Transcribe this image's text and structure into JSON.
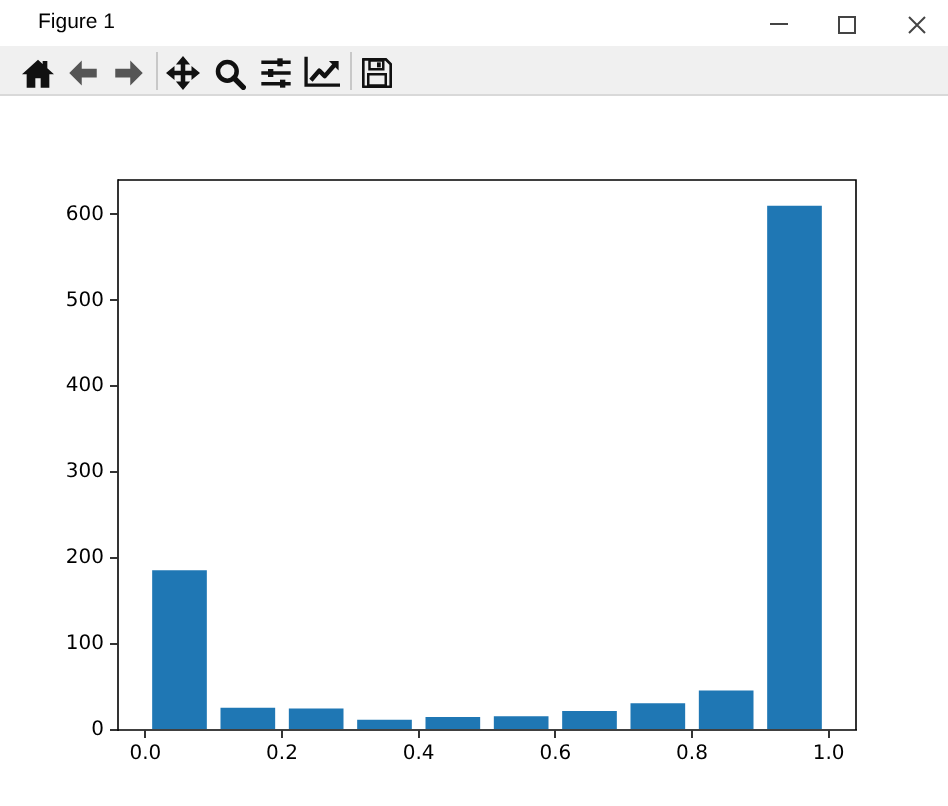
{
  "chart_data": {
    "type": "bar",
    "x": [
      0.05,
      0.15,
      0.25,
      0.35,
      0.45,
      0.55,
      0.65,
      0.75,
      0.85,
      0.95
    ],
    "values": [
      186,
      26,
      25,
      12,
      15,
      16,
      22,
      31,
      46,
      610
    ],
    "color": "#1f77b4",
    "xlim": [
      -0.04,
      1.04
    ],
    "xticks": [
      {
        "value": 0,
        "label": "0.0"
      },
      0.2,
      0.4,
      0.6,
      0.8,
      {
        "value": 1,
        "label": "1.0"
      }
    ],
    "ylim": [
      0,
      640
    ],
    "yticks": [
      0,
      100,
      200,
      300,
      400,
      500,
      600
    ],
    "annotations": [
      "Figure 1"
    ]
  }
}
